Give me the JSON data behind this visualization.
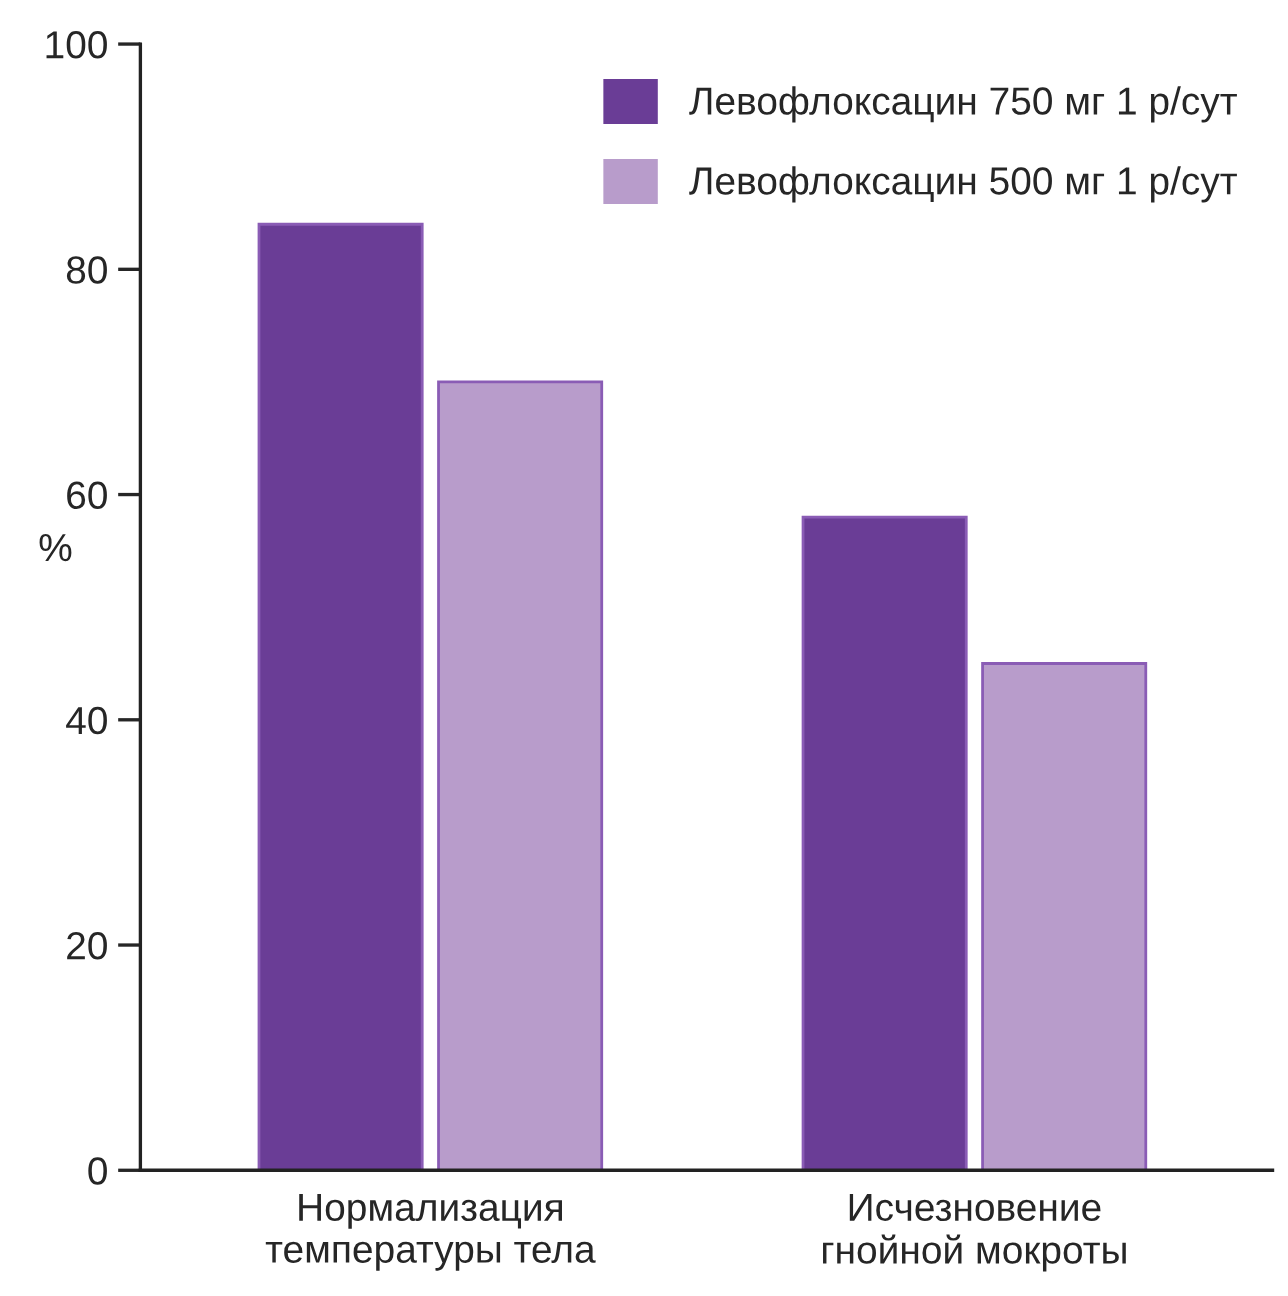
{
  "chart_data": {
    "type": "bar",
    "ylabel": "%",
    "categories": [
      "Нормализация\nтемпературы тела",
      "Исчезновение\nгнойной мокроты"
    ],
    "series": [
      {
        "name": "Левофлоксацин 750 мг 1 р/сут",
        "color": "#6a3d96",
        "values": [
          84,
          58
        ]
      },
      {
        "name": "Левофлоксацин 500 мг 1 р/сут",
        "color": "#b89ccb",
        "values": [
          70,
          45
        ]
      }
    ],
    "ylim": [
      0,
      100
    ],
    "yticks": [
      0,
      20,
      40,
      60,
      80,
      100
    ],
    "grid": false,
    "legend": "top right"
  }
}
